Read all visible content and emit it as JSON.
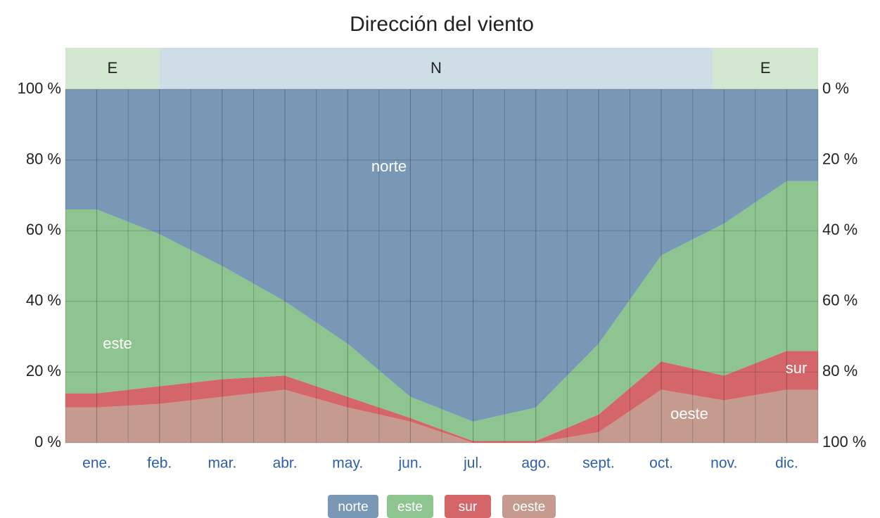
{
  "chart_data": {
    "type": "stacked_area",
    "title": "Dirección del viento",
    "categories": [
      "ene.",
      "feb.",
      "mar.",
      "abr.",
      "may.",
      "jun.",
      "jul.",
      "ago.",
      "sept.",
      "oct.",
      "nov.",
      "dic."
    ],
    "dominant": [
      "E",
      "N",
      "E"
    ],
    "series": [
      {
        "name": "oeste",
        "color": "#c49b8e",
        "values": [
          10,
          11,
          13,
          15,
          10,
          6,
          0,
          0,
          3,
          15,
          12,
          15
        ]
      },
      {
        "name": "sur",
        "color": "#d4666a",
        "values": [
          4,
          5,
          5,
          4,
          3,
          1,
          0.5,
          0.5,
          5,
          8,
          7,
          11
        ]
      },
      {
        "name": "este",
        "color": "#8ec48f",
        "values": [
          52,
          43,
          32,
          21,
          15,
          6,
          5.5,
          9.5,
          20,
          30,
          43,
          48
        ]
      },
      {
        "name": "norte",
        "color": "#7898b6",
        "values": [
          34,
          41,
          50,
          60,
          72,
          87,
          94,
          90,
          72,
          47,
          38,
          26
        ]
      }
    ],
    "ylim": [
      0,
      100
    ],
    "yticks": [
      {
        "value": 0,
        "label": "0 %"
      },
      {
        "value": 20,
        "label": "20 %"
      },
      {
        "value": 40,
        "label": "40 %"
      },
      {
        "value": 60,
        "label": "60 %"
      },
      {
        "value": 80,
        "label": "80 %"
      },
      {
        "value": 100,
        "label": "100 %"
      }
    ],
    "y2lim": [
      100,
      0
    ],
    "y2ticks": [
      {
        "value": 0,
        "label": "0 %"
      },
      {
        "value": 20,
        "label": "20 %"
      },
      {
        "value": 40,
        "label": "40 %"
      },
      {
        "value": 60,
        "label": "60 %"
      },
      {
        "value": 80,
        "label": "80 %"
      },
      {
        "value": 100,
        "label": "100 %"
      }
    ],
    "grid": true
  }
}
